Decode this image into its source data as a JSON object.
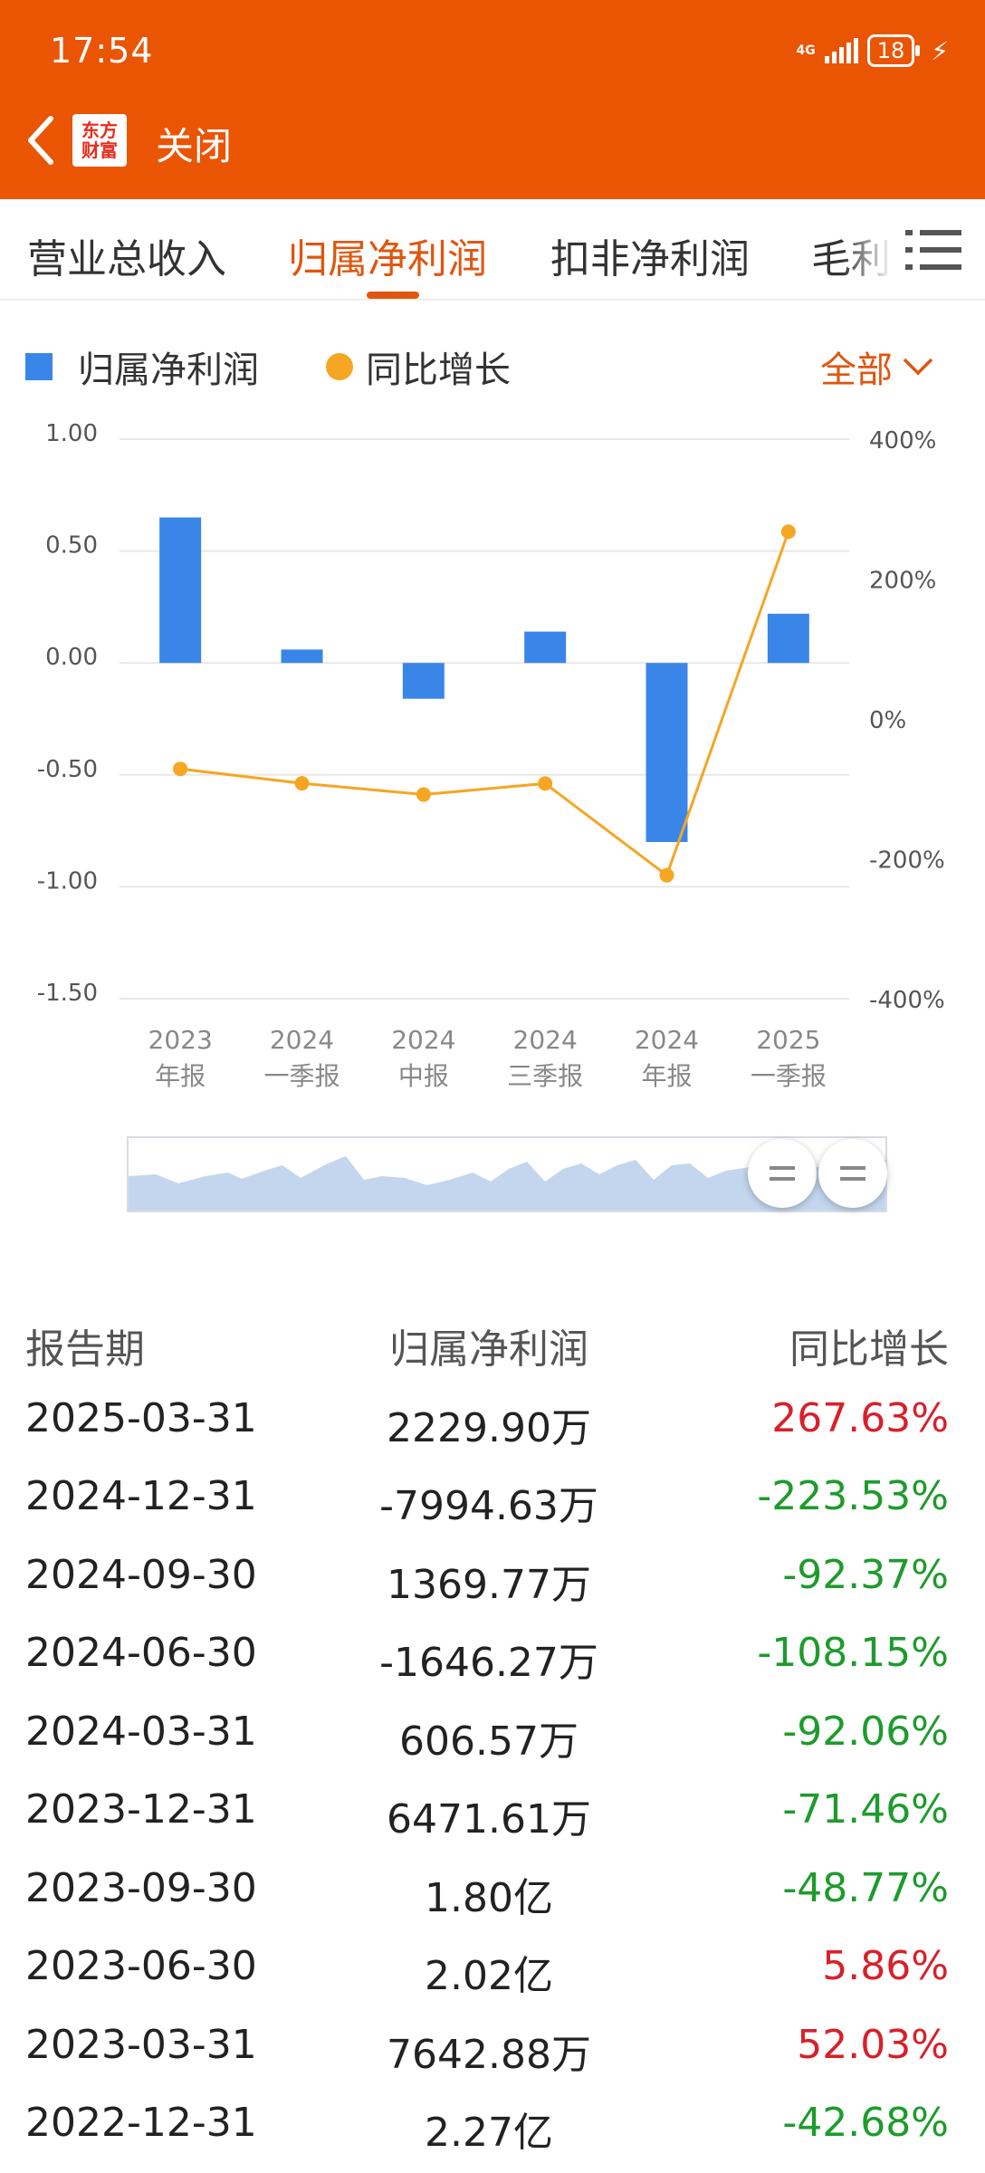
{
  "status_bar": {
    "time": "17:54",
    "network": "4G",
    "battery": "18"
  },
  "header": {
    "close_label": "关闭",
    "logo_line1": "东方",
    "logo_line2": "财富"
  },
  "tabs": [
    {
      "label": "营业总收入",
      "active": false
    },
    {
      "label": "归属净利润",
      "active": true
    },
    {
      "label": "扣非净利润",
      "active": false
    },
    {
      "label": "毛利",
      "active": false
    }
  ],
  "legend": {
    "bar_label": "归属净利润",
    "line_label": "同比增长",
    "range_label": "全部"
  },
  "chart_data": {
    "type": "bar",
    "categories": [
      "2023\n年报",
      "2024\n一季报",
      "2024\n中报",
      "2024\n三季报",
      "2024\n年报",
      "2025\n一季报"
    ],
    "category_lines": [
      [
        "2023",
        "年报"
      ],
      [
        "2024",
        "一季报"
      ],
      [
        "2024",
        "中报"
      ],
      [
        "2024",
        "三季报"
      ],
      [
        "2024",
        "年报"
      ],
      [
        "2025",
        "一季报"
      ]
    ],
    "series": [
      {
        "name": "归属净利润",
        "type": "bar",
        "axis": "left",
        "color": "#3a86e8",
        "values": [
          0.65,
          0.06,
          -0.16,
          0.14,
          -0.8,
          0.22
        ]
      },
      {
        "name": "同比增长",
        "type": "line",
        "axis": "right",
        "color": "#f5a623",
        "values": [
          -71.46,
          -92.06,
          -108.15,
          -92.37,
          -223.53,
          267.63
        ]
      }
    ],
    "left_axis": {
      "ticks": [
        "1.00",
        "0.50",
        "0.00",
        "-0.50",
        "-1.00",
        "-1.50"
      ],
      "ylim": [
        -1.5,
        1.0
      ]
    },
    "right_axis": {
      "ticks": [
        "400%",
        "200%",
        "0%",
        "-200%",
        "-400%"
      ],
      "ylim": [
        -400,
        400
      ]
    },
    "grid": true,
    "legend_position": "top-left"
  },
  "table": {
    "headers": [
      "报告期",
      "归属净利润",
      "同比增长"
    ],
    "rows": [
      {
        "period": "2025-03-31",
        "value": "2229.90万",
        "growth": "267.63%",
        "trend": "up"
      },
      {
        "period": "2024-12-31",
        "value": "-7994.63万",
        "growth": "-223.53%",
        "trend": "down"
      },
      {
        "period": "2024-09-30",
        "value": "1369.77万",
        "growth": "-92.37%",
        "trend": "down"
      },
      {
        "period": "2024-06-30",
        "value": "-1646.27万",
        "growth": "-108.15%",
        "trend": "down"
      },
      {
        "period": "2024-03-31",
        "value": "606.57万",
        "growth": "-92.06%",
        "trend": "down"
      },
      {
        "period": "2023-12-31",
        "value": "6471.61万",
        "growth": "-71.46%",
        "trend": "down"
      },
      {
        "period": "2023-09-30",
        "value": "1.80亿",
        "growth": "-48.77%",
        "trend": "down"
      },
      {
        "period": "2023-06-30",
        "value": "2.02亿",
        "growth": "5.86%",
        "trend": "up"
      },
      {
        "period": "2023-03-31",
        "value": "7642.88万",
        "growth": "52.03%",
        "trend": "up"
      },
      {
        "period": "2022-12-31",
        "value": "2.27亿",
        "growth": "-42.68%",
        "trend": "down"
      }
    ]
  }
}
